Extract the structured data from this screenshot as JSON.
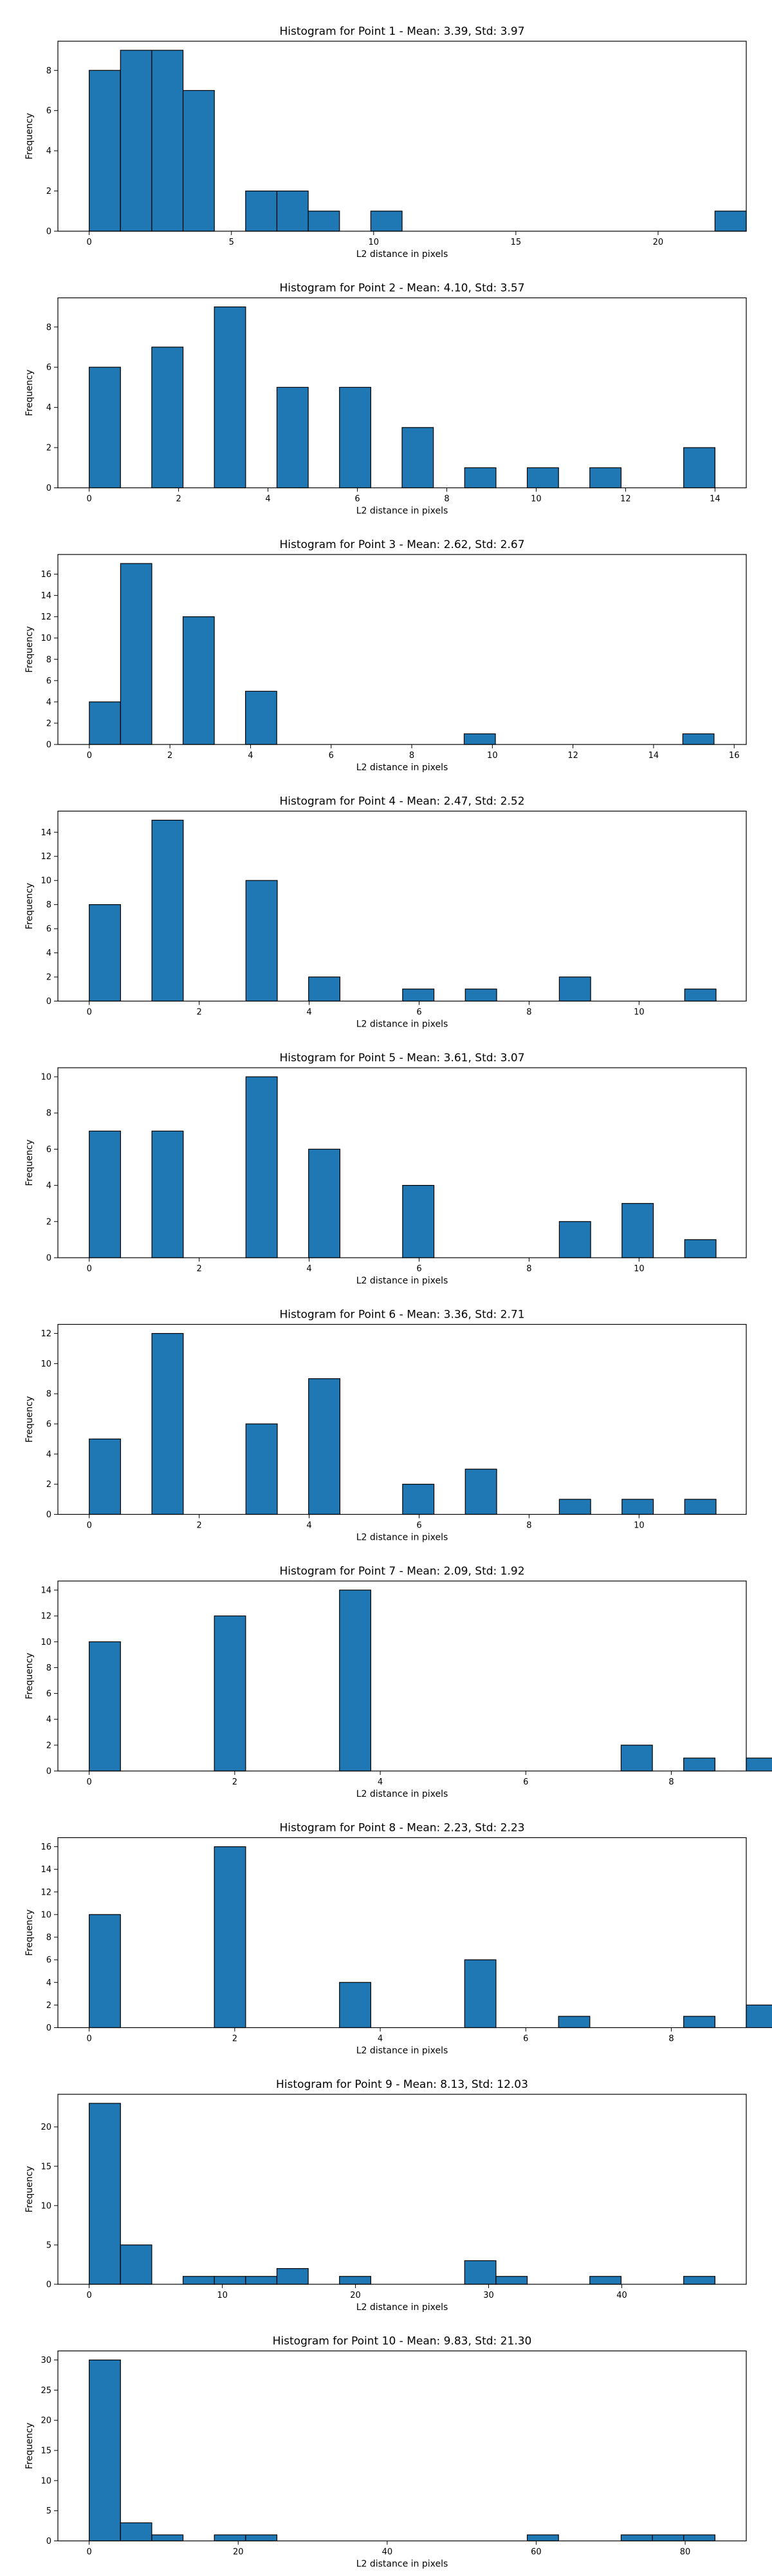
{
  "chart_data": [
    {
      "type": "bar",
      "title": "Histogram for Point 1 - Mean: 3.39, Std: 3.97",
      "xlabel": "L2 distance in pixels",
      "ylabel": "Frequency",
      "xlim": [
        -1.1,
        23.1
      ],
      "ylim": [
        0,
        9.45
      ],
      "xticks": [
        0,
        5,
        10,
        15,
        20
      ],
      "yticks": [
        0,
        2,
        4,
        6,
        8
      ],
      "bin_start": 0,
      "bin_width": 1.1,
      "values": [
        8,
        9,
        9,
        7,
        0,
        2,
        2,
        1,
        0,
        1,
        0,
        0,
        0,
        0,
        0,
        0,
        0,
        0,
        0,
        0,
        1
      ]
    },
    {
      "type": "bar",
      "title": "Histogram for Point 2 - Mean: 4.10, Std: 3.57",
      "xlabel": "L2 distance in pixels",
      "ylabel": "Frequency",
      "xlim": [
        -0.7,
        14.7
      ],
      "ylim": [
        0,
        9.45
      ],
      "xticks": [
        0,
        2,
        4,
        6,
        8,
        10,
        12,
        14
      ],
      "yticks": [
        0,
        2,
        4,
        6,
        8
      ],
      "bin_start": 0,
      "bin_width": 0.7,
      "values": [
        6,
        0,
        7,
        0,
        9,
        0,
        5,
        0,
        5,
        0,
        3,
        0,
        1,
        0,
        1,
        0,
        1,
        0,
        0,
        2
      ]
    },
    {
      "type": "bar",
      "title": "Histogram for Point 3 - Mean: 2.62, Std: 2.67",
      "xlabel": "L2 distance in pixels",
      "ylabel": "Frequency",
      "xlim": [
        -0.78,
        16.3
      ],
      "ylim": [
        0,
        17.85
      ],
      "xticks": [
        0,
        2,
        4,
        6,
        8,
        10,
        12,
        14,
        16
      ],
      "yticks": [
        0,
        2,
        4,
        6,
        8,
        10,
        12,
        14,
        16
      ],
      "bin_start": 0,
      "bin_width": 0.775,
      "values": [
        4,
        17,
        0,
        12,
        0,
        5,
        0,
        0,
        0,
        0,
        0,
        0,
        1,
        0,
        0,
        0,
        0,
        0,
        0,
        1
      ]
    },
    {
      "type": "bar",
      "title": "Histogram for Point 4 - Mean: 2.47, Std: 2.52",
      "xlabel": "L2 distance in pixels",
      "ylabel": "Frequency",
      "xlim": [
        -0.57,
        11.95
      ],
      "ylim": [
        0,
        15.75
      ],
      "xticks": [
        0,
        2,
        4,
        6,
        8,
        10
      ],
      "yticks": [
        0,
        2,
        4,
        6,
        8,
        10,
        12,
        14
      ],
      "bin_start": 0,
      "bin_width": 0.57,
      "values": [
        8,
        0,
        15,
        0,
        0,
        10,
        0,
        2,
        0,
        0,
        1,
        0,
        1,
        0,
        0,
        2,
        0,
        0,
        0,
        1
      ]
    },
    {
      "type": "bar",
      "title": "Histogram for Point 5 - Mean: 3.61, Std: 3.07",
      "xlabel": "L2 distance in pixels",
      "ylabel": "Frequency",
      "xlim": [
        -0.57,
        11.95
      ],
      "ylim": [
        0,
        10.5
      ],
      "xticks": [
        0,
        2,
        4,
        6,
        8,
        10
      ],
      "yticks": [
        0,
        2,
        4,
        6,
        8,
        10
      ],
      "bin_start": 0,
      "bin_width": 0.57,
      "values": [
        7,
        0,
        7,
        0,
        0,
        10,
        0,
        6,
        0,
        0,
        4,
        0,
        0,
        0,
        0,
        2,
        0,
        3,
        0,
        1
      ]
    },
    {
      "type": "bar",
      "title": "Histogram for Point 6 - Mean: 3.36, Std: 2.71",
      "xlabel": "L2 distance in pixels",
      "ylabel": "Frequency",
      "xlim": [
        -0.57,
        11.95
      ],
      "ylim": [
        0,
        12.6
      ],
      "xticks": [
        0,
        2,
        4,
        6,
        8,
        10
      ],
      "yticks": [
        0,
        2,
        4,
        6,
        8,
        10,
        12
      ],
      "bin_start": 0,
      "bin_width": 0.57,
      "values": [
        5,
        0,
        12,
        0,
        0,
        6,
        0,
        9,
        0,
        0,
        2,
        0,
        3,
        0,
        0,
        1,
        0,
        1,
        0,
        1
      ]
    },
    {
      "type": "bar",
      "title": "Histogram for Point 7 - Mean: 2.09, Std: 1.92",
      "xlabel": "L2 distance in pixels",
      "ylabel": "Frequency",
      "xlim": [
        -0.43,
        9.03
      ],
      "ylim": [
        0,
        14.7
      ],
      "xticks": [
        0,
        2,
        4,
        6,
        8
      ],
      "yticks": [
        0,
        2,
        4,
        6,
        8,
        10,
        12,
        14
      ],
      "bin_start": 0,
      "bin_width": 0.43,
      "values": [
        10,
        0,
        0,
        0,
        12,
        0,
        0,
        0,
        14,
        0,
        0,
        0,
        0,
        0,
        0,
        0,
        0,
        2,
        0,
        1,
        0,
        1
      ]
    },
    {
      "type": "bar",
      "title": "Histogram for Point 8 - Mean: 2.23, Std: 2.23",
      "xlabel": "L2 distance in pixels",
      "ylabel": "Frequency",
      "xlim": [
        -0.43,
        9.03
      ],
      "ylim": [
        0,
        16.8
      ],
      "xticks": [
        0,
        2,
        4,
        6,
        8
      ],
      "yticks": [
        0,
        2,
        4,
        6,
        8,
        10,
        12,
        14,
        16
      ],
      "bin_start": 0,
      "bin_width": 0.43,
      "values": [
        10,
        0,
        0,
        0,
        16,
        0,
        0,
        0,
        4,
        0,
        0,
        0,
        6,
        0,
        0,
        1,
        0,
        0,
        0,
        1,
        0,
        2
      ]
    },
    {
      "type": "bar",
      "title": "Histogram for Point 9 - Mean: 8.13, Std: 12.03",
      "xlabel": "L2 distance in pixels",
      "ylabel": "Frequency",
      "xlim": [
        -2.35,
        49.35
      ],
      "ylim": [
        0,
        24.15
      ],
      "xticks": [
        0,
        10,
        20,
        30,
        40
      ],
      "yticks": [
        0,
        5,
        10,
        15,
        20
      ],
      "bin_start": 0,
      "bin_width": 2.35,
      "values": [
        23,
        5,
        0,
        1,
        1,
        1,
        2,
        0,
        1,
        0,
        0,
        0,
        3,
        1,
        0,
        0,
        1,
        0,
        0,
        1
      ]
    },
    {
      "type": "bar",
      "title": "Histogram for Point 10 - Mean: 9.83, Std: 21.30",
      "xlabel": "L2 distance in pixels",
      "ylabel": "Frequency",
      "xlim": [
        -4.2,
        88.2
      ],
      "ylim": [
        0,
        31.5
      ],
      "xticks": [
        0,
        20,
        40,
        60,
        80
      ],
      "yticks": [
        0,
        5,
        10,
        15,
        20,
        25,
        30
      ],
      "bin_start": 0,
      "bin_width": 4.2,
      "values": [
        30,
        3,
        1,
        0,
        1,
        1,
        0,
        0,
        0,
        0,
        0,
        0,
        0,
        0,
        1,
        0,
        0,
        1,
        1,
        1
      ]
    }
  ],
  "colors": {
    "bar_fill": "#1f77b4",
    "bar_edge": "#000000",
    "axis": "#000000",
    "text": "#000000"
  }
}
